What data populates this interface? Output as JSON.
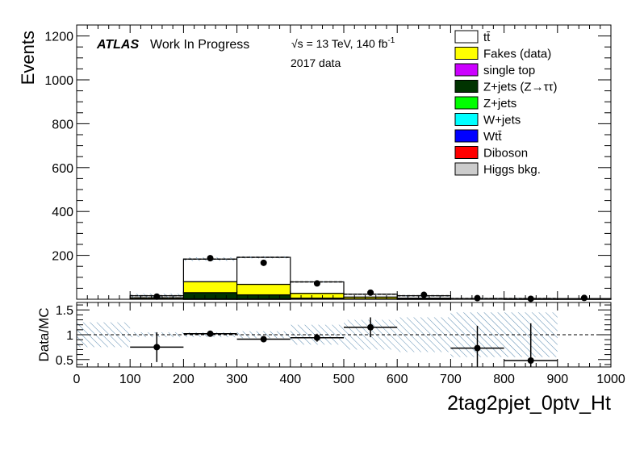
{
  "chart_data": [
    {
      "type": "bar",
      "stacked": true,
      "ylabel": "Events",
      "xlabel": "2tag2pjet_0ptv_Ht",
      "xlim": [
        0,
        1000
      ],
      "ylim": [
        0,
        1250
      ],
      "x_ticks": [
        0,
        100,
        200,
        300,
        400,
        500,
        600,
        700,
        800,
        900,
        1000
      ],
      "y_ticks": [
        200,
        400,
        600,
        800,
        1000,
        1200
      ],
      "bin_edges": [
        0,
        100,
        200,
        300,
        400,
        500,
        600,
        700,
        800,
        900,
        1000
      ],
      "annotations": {
        "atlas": "ATLAS",
        "label": "Work In Progress",
        "energy": "√s = 13 TeV, 140 fb",
        "energy_sup": "-1",
        "dataset": "2017 data"
      },
      "legend_position": "top-right",
      "series": [
        {
          "name": "Higgs bkg.",
          "color": "#cccccc",
          "values": [
            0,
            0,
            1,
            1,
            0,
            0,
            0,
            0,
            0,
            0
          ]
        },
        {
          "name": "Diboson",
          "color": "#ff0000",
          "values": [
            0,
            0,
            1,
            1,
            0,
            0,
            0,
            0,
            0,
            0
          ]
        },
        {
          "name": "Wtt̄",
          "color": "#0000ff",
          "values": [
            0,
            0,
            0,
            0,
            0,
            0,
            0,
            0,
            0,
            0
          ]
        },
        {
          "name": "W+jets",
          "color": "#00ffff",
          "values": [
            0,
            0,
            0,
            0,
            0,
            0,
            0,
            0,
            0,
            0
          ]
        },
        {
          "name": "Z+jets",
          "color": "#00ff00",
          "values": [
            0,
            0,
            0,
            0,
            0,
            0,
            0,
            0,
            0,
            0
          ]
        },
        {
          "name": "Z+jets (Z→ττ)",
          "color": "#003300",
          "values": [
            0,
            2,
            28,
            18,
            5,
            2,
            1,
            0,
            0,
            0
          ]
        },
        {
          "name": "single top",
          "color": "#cc00ff",
          "values": [
            0,
            0,
            0,
            0,
            0,
            0,
            0,
            0,
            0,
            0
          ]
        },
        {
          "name": "Fakes (data)",
          "color": "#ffff00",
          "values": [
            0,
            5,
            50,
            48,
            22,
            8,
            4,
            2,
            1,
            1
          ]
        },
        {
          "name": "tt̄",
          "color": "#ffffff",
          "values": [
            0,
            9,
            103,
            123,
            52,
            13,
            11,
            1,
            2,
            2
          ]
        }
      ],
      "data_points": {
        "x": [
          150,
          250,
          350,
          450,
          550,
          650,
          750,
          850,
          950
        ],
        "y": [
          12,
          187,
          166,
          72,
          30,
          20,
          5,
          2,
          6
        ],
        "yerr": [
          3.5,
          13.7,
          12.9,
          8.5,
          5.5,
          4.5,
          2.2,
          1.4,
          2.4
        ]
      },
      "uncertainty_band": {
        "x": [
          150,
          250,
          350,
          450,
          550,
          650,
          750,
          850,
          950
        ],
        "err": [
          2,
          10,
          8,
          5,
          3,
          3,
          1,
          1,
          1
        ]
      }
    },
    {
      "type": "scatter",
      "ylabel": "Data/MC",
      "xlabel": "2tag2pjet_0ptv_Ht",
      "xlim": [
        0,
        1000
      ],
      "ylim": [
        0.35,
        1.65
      ],
      "y_ticks": [
        0.5,
        1,
        1.5
      ],
      "y_tick_labels": [
        "0.5",
        "1",
        "1.5"
      ],
      "reference_line": 1,
      "x": [
        150,
        250,
        350,
        450,
        550,
        750,
        850
      ],
      "y": [
        0.75,
        1.02,
        0.91,
        0.94,
        1.15,
        0.73,
        0.48
      ],
      "yerr": [
        0.3,
        0.05,
        0.05,
        0.08,
        0.2,
        0.45,
        0.75
      ],
      "xerr": 50,
      "uncertainty_band": {
        "x": [
          150,
          250,
          350,
          450,
          550,
          650,
          750,
          850,
          950
        ],
        "half_width": [
          0.25,
          0.05,
          0.05,
          0.07,
          0.2,
          0.3,
          0.35,
          0.45,
          0.45
        ]
      }
    }
  ]
}
